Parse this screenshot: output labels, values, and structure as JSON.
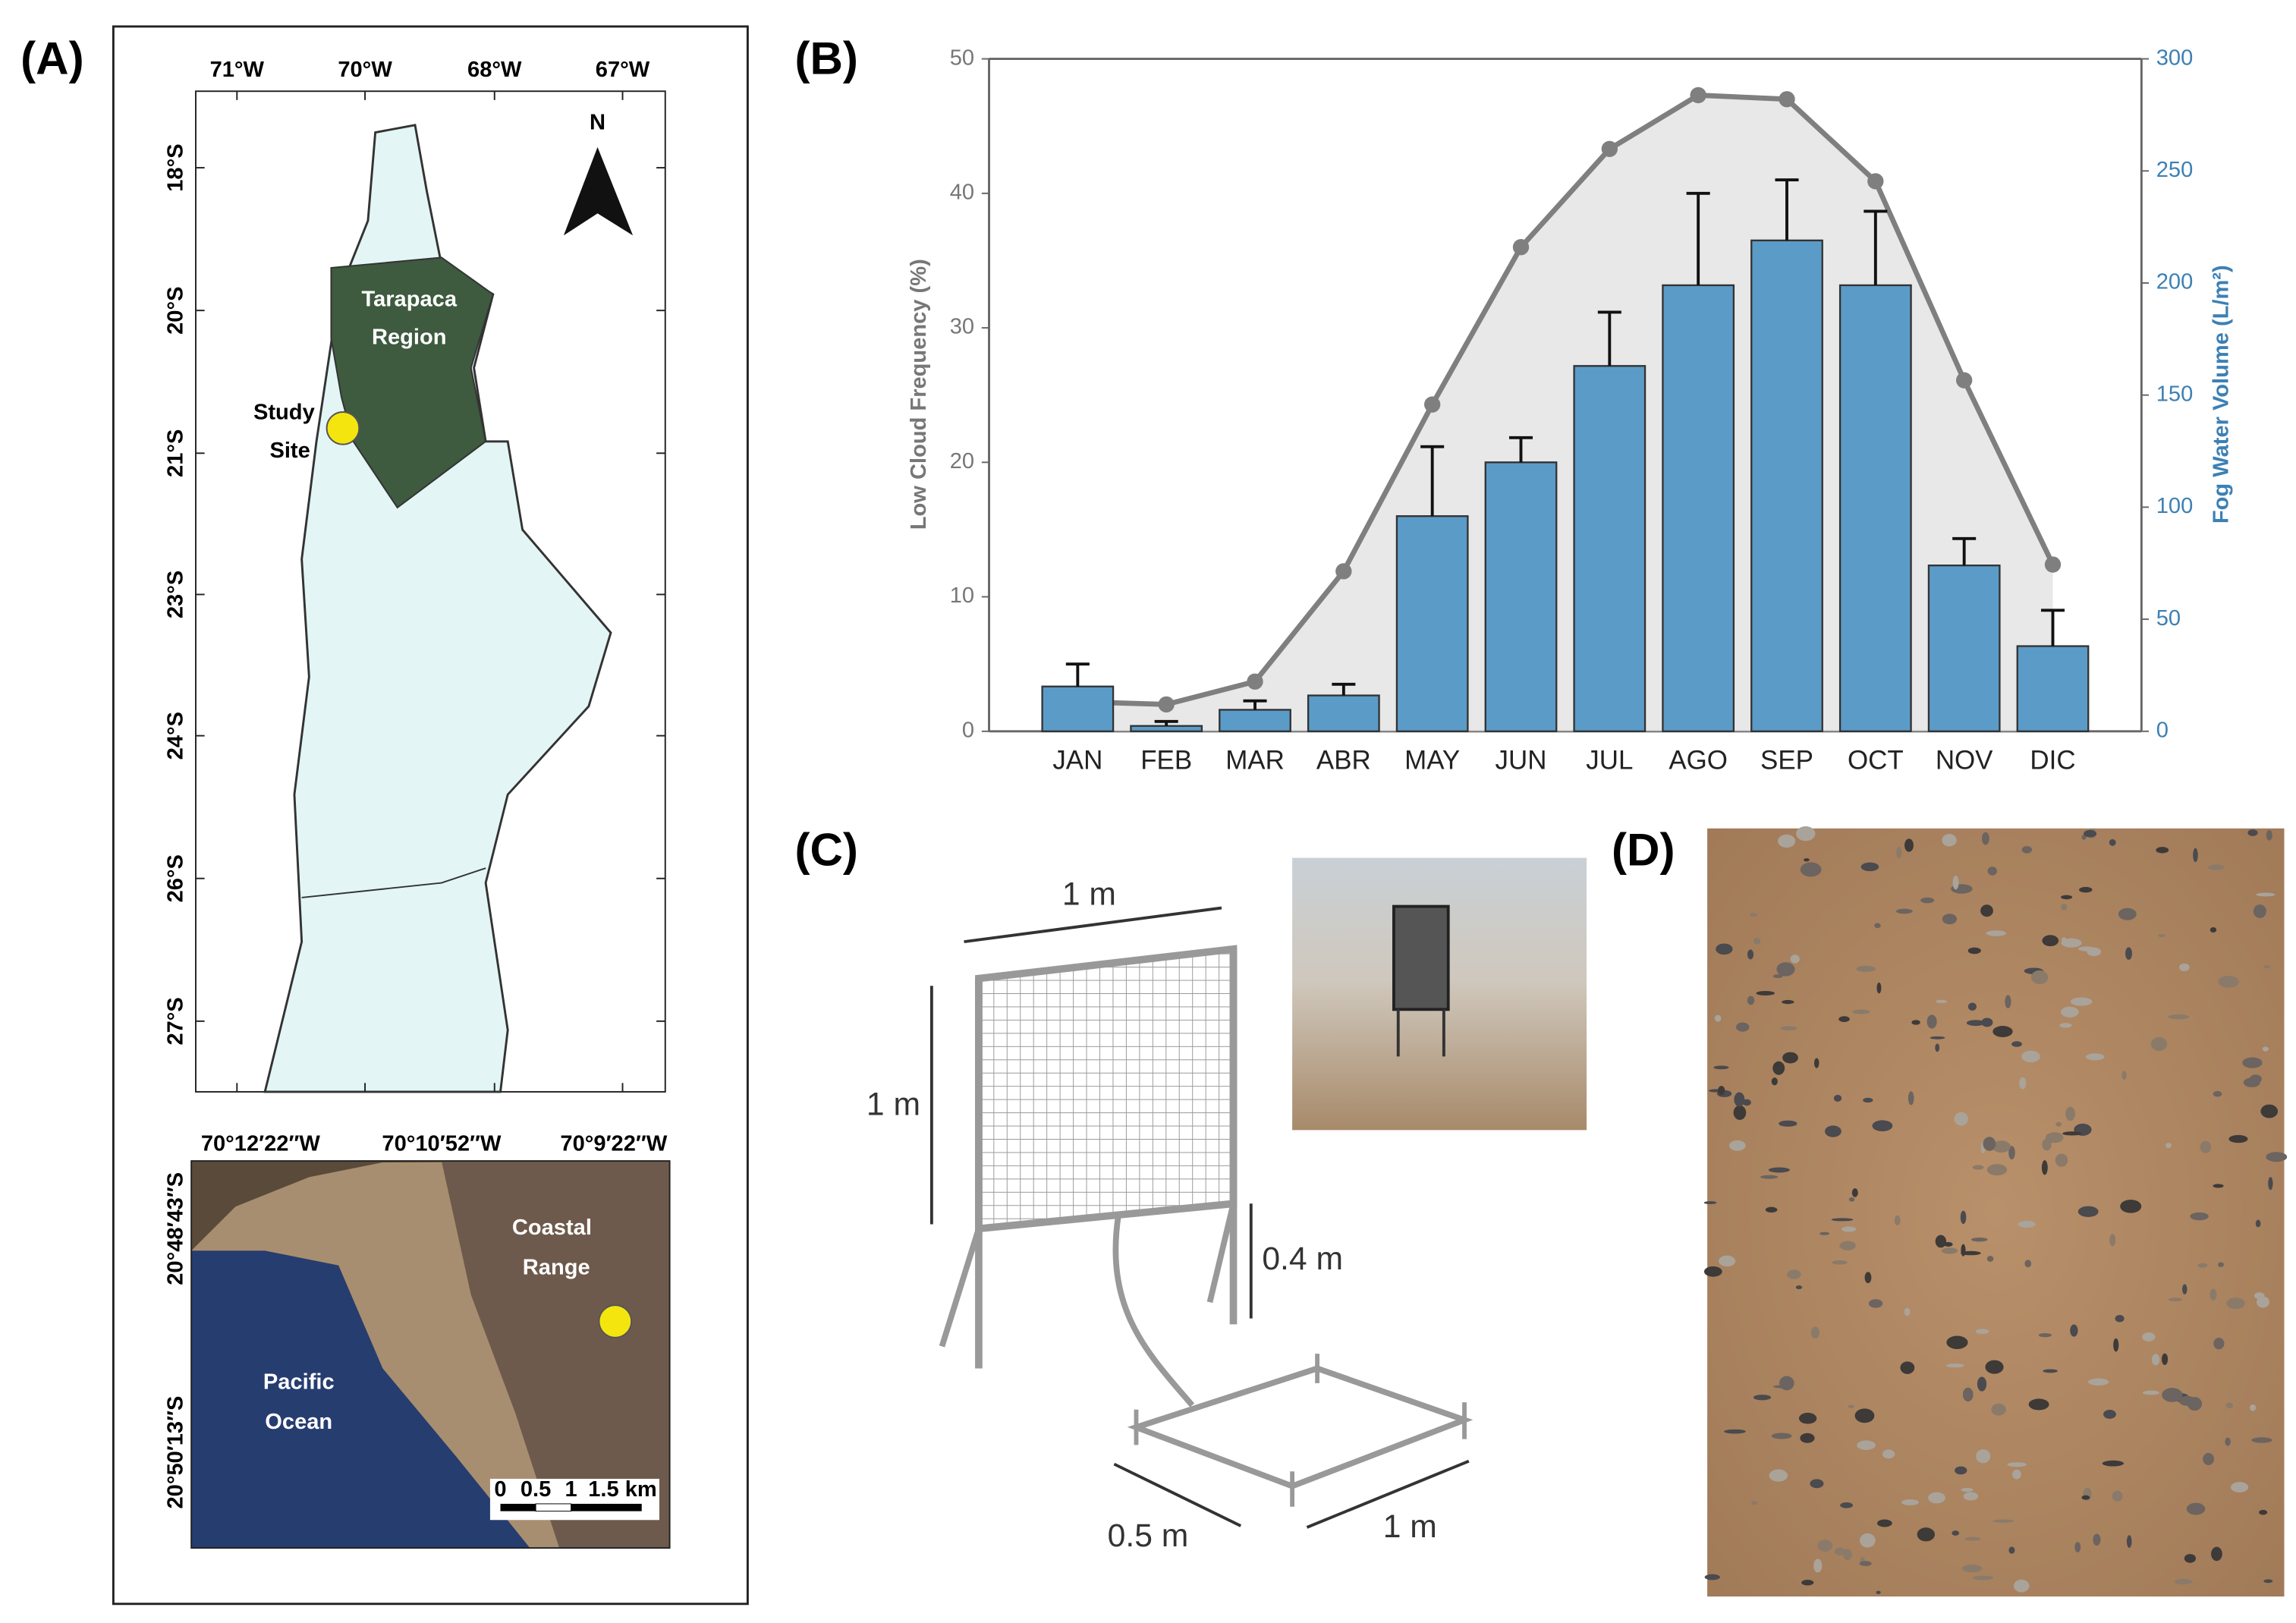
{
  "panel_labels": [
    "(A)",
    "(B)",
    "(C)",
    "(D)"
  ],
  "map": {
    "lon_ticks": [
      "71°W",
      "70°W",
      "68°W",
      "67°W"
    ],
    "lat_ticks": [
      "18°S",
      "20°S",
      "21°S",
      "23°S",
      "24°S",
      "26°S",
      "27°S"
    ],
    "north": "N",
    "region": [
      "Tarapaca",
      "Region"
    ],
    "site": [
      "Study",
      "Site"
    ]
  },
  "inset": {
    "lon_ticks": [
      "70°12′22″W",
      "70°10′52″W",
      "70°9′22″W"
    ],
    "lat_ticks": [
      "20°48′43″S",
      "20°50′13″S"
    ],
    "range": [
      "Coastal",
      "Range"
    ],
    "ocean": [
      "Pacific",
      "Ocean"
    ],
    "scale": [
      "0",
      "0.5",
      "1",
      "1.5 km"
    ]
  },
  "chart_data": {
    "type": "bar",
    "categories": [
      "JAN",
      "FEB",
      "MAR",
      "ABR",
      "MAY",
      "JUN",
      "JUL",
      "AGO",
      "SEP",
      "OCT",
      "NOV",
      "DIC"
    ],
    "y_label": "Low Cloud Frequency (%)",
    "y2_label": "Fog Water Volume (L/m²)",
    "ylim": [
      0,
      50
    ],
    "yticks": [
      0,
      10,
      20,
      30,
      40,
      50
    ],
    "y2lim": [
      0,
      300
    ],
    "y2ticks": [
      0,
      50,
      100,
      150,
      200,
      250,
      300
    ],
    "series": [
      {
        "type": "bar",
        "axis": "y2",
        "color": "#5b9bc8",
        "values": [
          20,
          2.4,
          9.6,
          16,
          96,
          120,
          163,
          199,
          219,
          199,
          74,
          38
        ],
        "errors": [
          10,
          2,
          4,
          5,
          31,
          11,
          24,
          41,
          27,
          33,
          12,
          16
        ]
      },
      {
        "type": "line",
        "axis": "y",
        "color": "#7f7f7f",
        "values": [
          2.2,
          2.0,
          3.7,
          11.9,
          24.3,
          36,
          43.3,
          47.3,
          47.0,
          40.9,
          26.1,
          12.4
        ]
      }
    ]
  },
  "diagram": {
    "width": "1 m",
    "height": "1 m",
    "leg": "0.4 m",
    "base_depth": "0.5 m",
    "base_width": "1 m"
  }
}
